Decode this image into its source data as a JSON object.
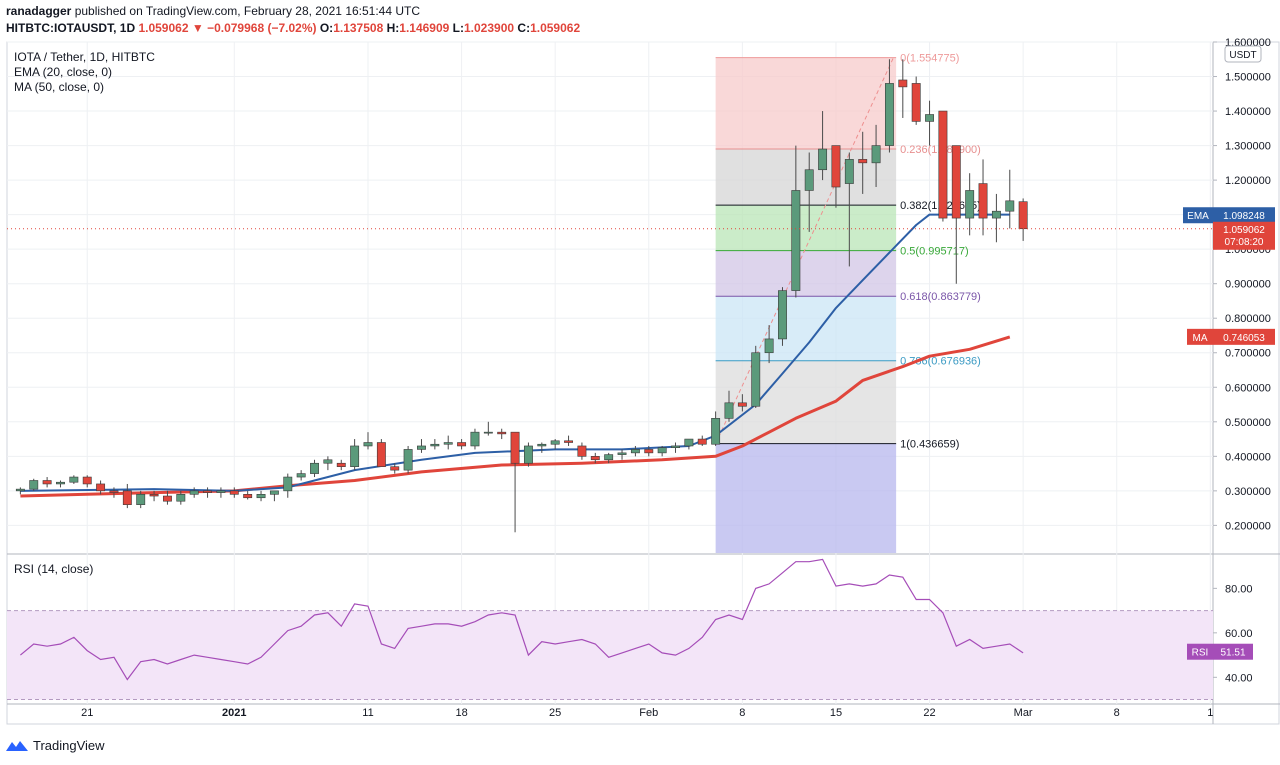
{
  "header": {
    "author": "ranadagger",
    "published_text": "published on TradingView.com, February 28, 2021 16:51:44 UTC"
  },
  "ohlc": {
    "symbol": "HITBTC:IOTAUSDT, 1D",
    "last": "1.059062",
    "change": "▼ −0.079968 (−7.02%)",
    "o_label": "O:",
    "o": "1.137508",
    "h_label": "H:",
    "h": "1.146909",
    "l_label": "L:",
    "l": "1.023900",
    "c_label": "C:",
    "c": "1.059062"
  },
  "footer": {
    "brand": "TradingView",
    "logo_icon": "tradingview-logo-icon"
  },
  "colors": {
    "up": "#5b9a7b",
    "down": "#e0453b",
    "ema": "#2962ff",
    "ema_line": "#2d5fa6",
    "ma": "#e0453b",
    "rsi": "#a54db8",
    "grid": "#eef0f3",
    "axis_text": "#131722"
  },
  "chart_data": [
    {
      "type": "candlestick",
      "title": "IOTA / Tether, 1D, HITBTC",
      "indicators": [
        "EMA (20, close, 0)",
        "MA (50, close, 0)"
      ],
      "currency_label": "USDT",
      "ylim": [
        0.12,
        1.6
      ],
      "y_ticks": [
        0.2,
        0.3,
        0.4,
        0.5,
        0.6,
        0.7,
        0.8,
        0.9,
        1.0,
        1.1,
        1.2,
        1.3,
        1.4,
        1.5,
        1.6
      ],
      "y_tick_labels": [
        "0.200000",
        "0.300000",
        "0.400000",
        "0.500000",
        "0.600000",
        "0.700000",
        "0.800000",
        "0.900000",
        "1.000000",
        "1.100000",
        "1.200000",
        "1.300000",
        "1.400000",
        "1.500000",
        "1.600000"
      ],
      "x_ticks": [
        {
          "day": 5,
          "label": "21"
        },
        {
          "day": 16,
          "label": "2021"
        },
        {
          "day": 26,
          "label": "11"
        },
        {
          "day": 33,
          "label": "18"
        },
        {
          "day": 40,
          "label": "25"
        },
        {
          "day": 47,
          "label": "Feb"
        },
        {
          "day": 54,
          "label": "8"
        },
        {
          "day": 61,
          "label": "15"
        },
        {
          "day": 68,
          "label": "22"
        },
        {
          "day": 75,
          "label": "Mar"
        },
        {
          "day": 82,
          "label": "8"
        },
        {
          "day": 89,
          "label": "1"
        }
      ],
      "x_range": [
        -1,
        89.2
      ],
      "candles": [
        [
          0.3,
          0.31,
          0.29,
          0.305
        ],
        [
          0.305,
          0.335,
          0.3,
          0.33
        ],
        [
          0.33,
          0.34,
          0.31,
          0.32
        ],
        [
          0.32,
          0.33,
          0.31,
          0.325
        ],
        [
          0.325,
          0.345,
          0.32,
          0.34
        ],
        [
          0.34,
          0.345,
          0.31,
          0.32
        ],
        [
          0.32,
          0.33,
          0.29,
          0.3
        ],
        [
          0.3,
          0.31,
          0.28,
          0.295
        ],
        [
          0.3,
          0.32,
          0.25,
          0.26
        ],
        [
          0.26,
          0.3,
          0.25,
          0.29
        ],
        [
          0.29,
          0.3,
          0.27,
          0.285
        ],
        [
          0.285,
          0.3,
          0.26,
          0.27
        ],
        [
          0.27,
          0.3,
          0.26,
          0.29
        ],
        [
          0.29,
          0.31,
          0.28,
          0.3
        ],
        [
          0.3,
          0.31,
          0.28,
          0.295
        ],
        [
          0.295,
          0.31,
          0.28,
          0.3
        ],
        [
          0.3,
          0.31,
          0.28,
          0.29
        ],
        [
          0.29,
          0.3,
          0.275,
          0.28
        ],
        [
          0.28,
          0.3,
          0.27,
          0.29
        ],
        [
          0.29,
          0.3,
          0.27,
          0.3
        ],
        [
          0.3,
          0.35,
          0.28,
          0.34
        ],
        [
          0.34,
          0.36,
          0.33,
          0.35
        ],
        [
          0.35,
          0.39,
          0.34,
          0.38
        ],
        [
          0.38,
          0.4,
          0.36,
          0.39
        ],
        [
          0.38,
          0.39,
          0.36,
          0.37
        ],
        [
          0.37,
          0.45,
          0.36,
          0.43
        ],
        [
          0.43,
          0.47,
          0.42,
          0.44
        ],
        [
          0.44,
          0.45,
          0.37,
          0.37
        ],
        [
          0.37,
          0.38,
          0.35,
          0.36
        ],
        [
          0.36,
          0.43,
          0.35,
          0.42
        ],
        [
          0.42,
          0.45,
          0.41,
          0.43
        ],
        [
          0.43,
          0.45,
          0.42,
          0.435
        ],
        [
          0.435,
          0.46,
          0.42,
          0.44
        ],
        [
          0.44,
          0.45,
          0.42,
          0.43
        ],
        [
          0.43,
          0.48,
          0.42,
          0.47
        ],
        [
          0.47,
          0.5,
          0.46,
          0.47
        ],
        [
          0.47,
          0.48,
          0.45,
          0.465
        ],
        [
          0.47,
          0.47,
          0.18,
          0.38
        ],
        [
          0.38,
          0.44,
          0.37,
          0.43
        ],
        [
          0.43,
          0.44,
          0.41,
          0.435
        ],
        [
          0.435,
          0.45,
          0.42,
          0.445
        ],
        [
          0.445,
          0.46,
          0.43,
          0.44
        ],
        [
          0.43,
          0.44,
          0.39,
          0.4
        ],
        [
          0.4,
          0.41,
          0.38,
          0.39
        ],
        [
          0.39,
          0.41,
          0.38,
          0.405
        ],
        [
          0.405,
          0.42,
          0.39,
          0.41
        ],
        [
          0.41,
          0.43,
          0.4,
          0.42
        ],
        [
          0.42,
          0.43,
          0.4,
          0.41
        ],
        [
          0.41,
          0.43,
          0.4,
          0.425
        ],
        [
          0.425,
          0.44,
          0.41,
          0.43
        ],
        [
          0.43,
          0.45,
          0.42,
          0.45
        ],
        [
          0.45,
          0.46,
          0.43,
          0.435
        ],
        [
          0.435,
          0.53,
          0.43,
          0.51
        ],
        [
          0.51,
          0.59,
          0.5,
          0.555
        ],
        [
          0.555,
          0.58,
          0.53,
          0.545
        ],
        [
          0.545,
          0.72,
          0.54,
          0.7
        ],
        [
          0.7,
          0.78,
          0.67,
          0.74
        ],
        [
          0.74,
          0.89,
          0.72,
          0.88
        ],
        [
          0.88,
          1.3,
          0.86,
          1.17
        ],
        [
          1.17,
          1.28,
          1.05,
          1.23
        ],
        [
          1.23,
          1.4,
          1.2,
          1.29
        ],
        [
          1.3,
          1.3,
          1.12,
          1.18
        ],
        [
          1.19,
          1.28,
          0.95,
          1.26
        ],
        [
          1.26,
          1.34,
          1.16,
          1.25
        ],
        [
          1.25,
          1.36,
          1.18,
          1.3
        ],
        [
          1.3,
          1.55,
          1.28,
          1.48
        ],
        [
          1.49,
          1.55,
          1.38,
          1.47
        ],
        [
          1.48,
          1.5,
          1.36,
          1.37
        ],
        [
          1.37,
          1.43,
          1.3,
          1.39
        ],
        [
          1.4,
          1.4,
          1.08,
          1.09
        ],
        [
          1.3,
          1.3,
          0.9,
          1.09
        ],
        [
          1.09,
          1.22,
          1.04,
          1.17
        ],
        [
          1.19,
          1.26,
          1.04,
          1.09
        ],
        [
          1.09,
          1.16,
          1.02,
          1.11
        ],
        [
          1.11,
          1.23,
          1.06,
          1.14
        ],
        [
          1.1375,
          1.1469,
          1.0239,
          1.0591
        ]
      ],
      "candle_start_day": 0,
      "ema_20": [
        [
          0,
          0.3
        ],
        [
          10,
          0.305
        ],
        [
          16,
          0.3
        ],
        [
          20,
          0.31
        ],
        [
          25,
          0.36
        ],
        [
          30,
          0.39
        ],
        [
          34,
          0.41
        ],
        [
          40,
          0.42
        ],
        [
          45,
          0.42
        ],
        [
          50,
          0.43
        ],
        [
          52,
          0.46
        ],
        [
          55,
          0.55
        ],
        [
          57,
          0.64
        ],
        [
          59,
          0.73
        ],
        [
          61,
          0.83
        ],
        [
          63,
          0.91
        ],
        [
          65,
          0.99
        ],
        [
          67,
          1.07
        ],
        [
          68,
          1.1
        ],
        [
          70,
          1.1
        ],
        [
          74,
          1.1
        ]
      ],
      "ma_50": [
        [
          0,
          0.285
        ],
        [
          5,
          0.29
        ],
        [
          10,
          0.295
        ],
        [
          16,
          0.3
        ],
        [
          20,
          0.315
        ],
        [
          25,
          0.33
        ],
        [
          30,
          0.355
        ],
        [
          36,
          0.375
        ],
        [
          42,
          0.38
        ],
        [
          48,
          0.39
        ],
        [
          52,
          0.4
        ],
        [
          54,
          0.43
        ],
        [
          56,
          0.47
        ],
        [
          58,
          0.51
        ],
        [
          61,
          0.56
        ],
        [
          63,
          0.62
        ],
        [
          66,
          0.66
        ],
        [
          68,
          0.69
        ],
        [
          71,
          0.71
        ],
        [
          74,
          0.746
        ]
      ],
      "fibonacci": {
        "x_start_day": 52,
        "x_end_day": 65.5,
        "levels": [
          {
            "ratio": "0",
            "price": 1.554775,
            "label": "0(1.554775)",
            "color": "#ee9a9a",
            "fill": "#f7cbcb"
          },
          {
            "ratio": "0.236",
            "price": 1.29,
            "label": "0.236(1.289900)",
            "color": "#e78f8f",
            "fill": "#d6d6d6"
          },
          {
            "ratio": "0.382",
            "price": 1.127655,
            "label": "0.382(1.127655)",
            "color": "#131722",
            "fill": "#b9e6b7"
          },
          {
            "ratio": "0.5",
            "price": 0.995717,
            "label": "0.5(0.995717)",
            "color": "#38a838",
            "fill": "#d2c5e6"
          },
          {
            "ratio": "0.618",
            "price": 0.863779,
            "label": "0.618(0.863779)",
            "color": "#7a55a8",
            "fill": "#cbe6f5"
          },
          {
            "ratio": "0.786",
            "price": 0.676936,
            "label": "0.786(0.676936)",
            "color": "#3c9bc4",
            "fill": "#dcdcdc"
          },
          {
            "ratio": "1",
            "price": 0.436659,
            "label": "1(0.436659)",
            "color": "#131722",
            "fill": "#b7b7ee"
          }
        ],
        "bottom_price": 0.12
      },
      "price_labels": [
        {
          "name": "EMA",
          "value": "1.098248",
          "price": 1.098248,
          "color": "#2d5fa6"
        },
        {
          "name": "",
          "value": "1.059062",
          "sub": "07:08:20",
          "price": 1.059062,
          "color": "#e0453b"
        },
        {
          "name": "MA",
          "value": "0.746053",
          "price": 0.746053,
          "color": "#e0453b"
        }
      ]
    },
    {
      "type": "line",
      "title": "RSI (14, close)",
      "ylim": [
        28,
        95
      ],
      "y_ticks": [
        40,
        60,
        80
      ],
      "y_tick_labels": [
        "40.00",
        "60.00",
        "80.00"
      ],
      "band": [
        30,
        70
      ],
      "rsi": [
        50,
        55,
        54,
        55,
        58,
        52,
        48,
        49,
        39,
        47,
        48,
        46,
        48,
        50,
        49,
        48,
        47,
        46,
        49,
        55,
        61,
        63,
        68,
        69,
        63,
        73,
        72,
        55,
        53,
        62,
        63,
        64,
        64,
        63,
        65,
        68,
        69,
        68,
        50,
        56,
        55,
        56,
        57,
        55,
        49,
        51,
        53,
        55,
        51,
        50,
        53,
        58,
        66,
        68,
        66,
        80,
        82,
        87,
        92,
        92,
        93,
        81,
        82,
        81,
        82,
        86,
        85,
        75,
        75,
        69,
        54,
        57,
        53,
        54,
        55,
        51
      ],
      "last_label": {
        "name": "RSI",
        "value": "51.51",
        "value_num": 51.51,
        "color": "#a54db8"
      }
    }
  ]
}
